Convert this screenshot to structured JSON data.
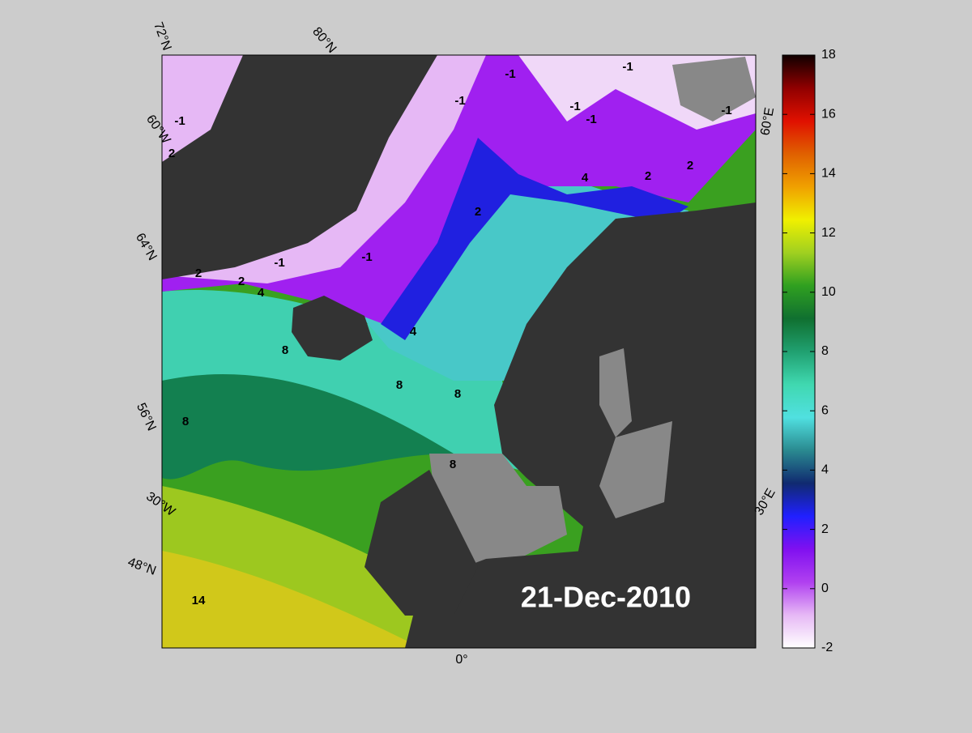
{
  "date": "21-Dec-2010",
  "colorbar": {
    "lim": [
      -2,
      18
    ],
    "ticks": [
      -2,
      0,
      2,
      4,
      6,
      8,
      10,
      12,
      14,
      16,
      18
    ],
    "colormap": [
      "#ffffff",
      "#e6b8f5",
      "#b040f0",
      "#8010f0",
      "#2020ff",
      "#102a70",
      "#2a8a90",
      "#50e0e0",
      "#40d8b0",
      "#20a070",
      "#107030",
      "#30a020",
      "#a0d020",
      "#f0f000",
      "#f0a000",
      "#e06000",
      "#e01000",
      "#900000",
      "#100000"
    ]
  },
  "graticule_labels": [
    "72°N",
    "80°N",
    "60°W",
    "64°N",
    "56°N",
    "30°W",
    "48°N",
    "0°",
    "30°E",
    "60°E"
  ],
  "contour_labels": [
    "-1",
    "-1",
    "-1",
    "-1",
    "-1",
    "-1",
    "-1",
    "-1",
    "-1",
    "2",
    "2",
    "2",
    "2",
    "2",
    "2",
    "4",
    "4",
    "4",
    "8",
    "8",
    "8",
    "8",
    "8",
    "14"
  ]
}
